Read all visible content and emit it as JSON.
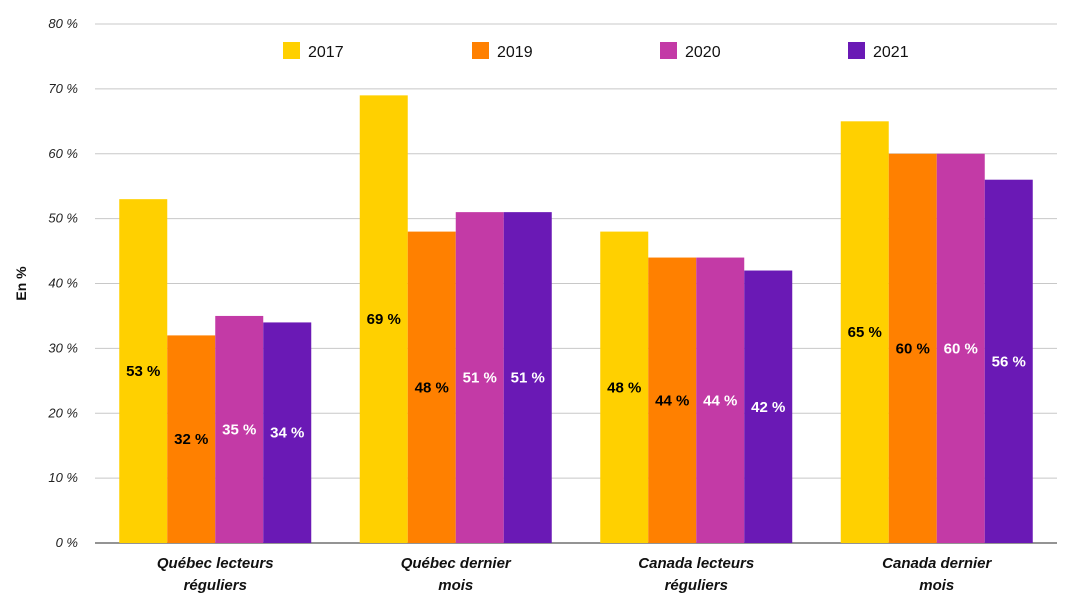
{
  "chart_data": {
    "type": "bar",
    "title": "",
    "xlabel": "",
    "ylabel": "En %",
    "ylim": [
      0,
      80
    ],
    "yticks": [
      "0 %",
      "10 %",
      "20 %",
      "30 %",
      "40 %",
      "50 %",
      "60 %",
      "70 %",
      "80 %"
    ],
    "grid": true,
    "legend_position": "top",
    "categories": [
      [
        "Québec lecteurs",
        "réguliers"
      ],
      [
        "Québec dernier",
        "mois"
      ],
      [
        "Canada lecteurs",
        "réguliers"
      ],
      [
        "Canada dernier",
        "mois"
      ]
    ],
    "series": [
      {
        "name": "2017",
        "color": "#FFD000",
        "label_color": "#000000",
        "values": [
          53,
          69,
          48,
          65
        ],
        "labels": [
          "53 %",
          "69 %",
          "48 %",
          "65 %"
        ]
      },
      {
        "name": "2019",
        "color": "#FF8000",
        "label_color": "#000000",
        "values": [
          32,
          48,
          44,
          60
        ],
        "labels": [
          "32 %",
          "48 %",
          "44 %",
          "60 %"
        ]
      },
      {
        "name": "2020",
        "color": "#C33AA6",
        "label_color": "#FFFFFF",
        "values": [
          35,
          51,
          44,
          60
        ],
        "labels": [
          "35 %",
          "51 %",
          "44 %",
          "60 %"
        ]
      },
      {
        "name": "2021",
        "color": "#6A19B5",
        "label_color": "#FFFFFF",
        "values": [
          34,
          51,
          42,
          56
        ],
        "labels": [
          "34 %",
          "51 %",
          "42 %",
          "56 %"
        ]
      }
    ]
  }
}
